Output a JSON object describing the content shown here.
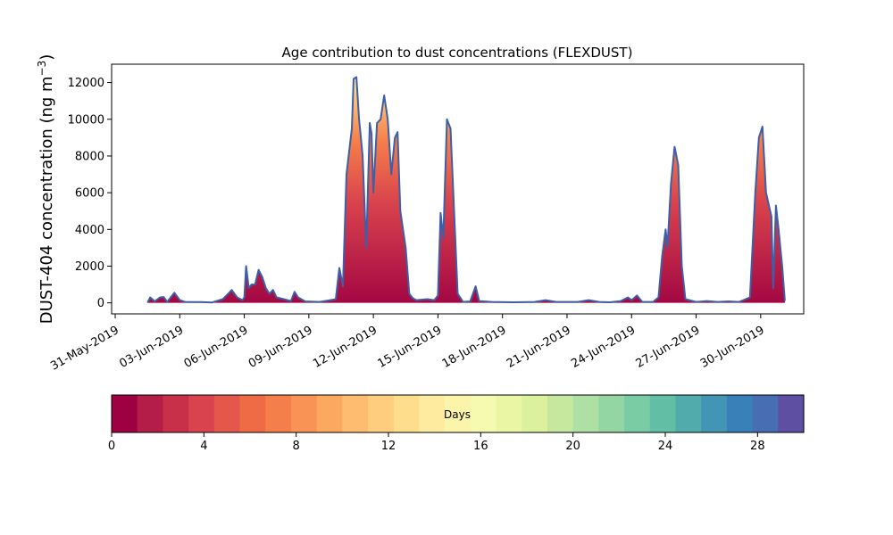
{
  "chart_data": {
    "type": "area",
    "title": "Age contribution to dust concentrations (FLEXDUST)",
    "ylabel": "DUST-404 concentration (ng m",
    "ylabel_unit_sup": "−3",
    "ylabel_close": ")",
    "ylim": [
      -600,
      13000
    ],
    "yticks": [
      0,
      2000,
      4000,
      6000,
      8000,
      10000,
      12000
    ],
    "xlim": [
      "2019-05-30T20:00",
      "2019-07-02T00:00"
    ],
    "xticks": [
      "2019-05-31",
      "2019-06-03",
      "2019-06-06",
      "2019-06-09",
      "2019-06-12",
      "2019-06-15",
      "2019-06-18",
      "2019-06-21",
      "2019-06-24",
      "2019-06-27",
      "2019-06-30"
    ],
    "xtick_labels": [
      "31-May-2019",
      "03-Jun-2019",
      "06-Jun-2019",
      "09-Jun-2019",
      "12-Jun-2019",
      "15-Jun-2019",
      "18-Jun-2019",
      "21-Jun-2019",
      "24-Jun-2019",
      "27-Jun-2019",
      "30-Jun-2019"
    ],
    "grid": false,
    "series_description": "Cumulative dust concentration stacked by particle age (0-30 days); outer envelope shown as blue line",
    "total_concentration": [
      [
        "2019-06-01T12:00",
        0
      ],
      [
        "2019-06-01T15:00",
        300
      ],
      [
        "2019-06-01T20:00",
        80
      ],
      [
        "2019-06-02T02:00",
        300
      ],
      [
        "2019-06-02T06:00",
        320
      ],
      [
        "2019-06-02T10:00",
        50
      ],
      [
        "2019-06-02T18:00",
        550
      ],
      [
        "2019-06-03T00:00",
        150
      ],
      [
        "2019-06-03T06:00",
        50
      ],
      [
        "2019-06-04T00:00",
        40
      ],
      [
        "2019-06-04T12:00",
        20
      ],
      [
        "2019-06-05T00:00",
        200
      ],
      [
        "2019-06-05T06:00",
        500
      ],
      [
        "2019-06-05T10:00",
        700
      ],
      [
        "2019-06-05T16:00",
        300
      ],
      [
        "2019-06-05T22:00",
        150
      ],
      [
        "2019-06-06T00:00",
        300
      ],
      [
        "2019-06-06T02:00",
        2000
      ],
      [
        "2019-06-06T05:00",
        800
      ],
      [
        "2019-06-06T08:00",
        1000
      ],
      [
        "2019-06-06T12:00",
        1000
      ],
      [
        "2019-06-06T16:00",
        1800
      ],
      [
        "2019-06-06T20:00",
        1400
      ],
      [
        "2019-06-07T00:00",
        800
      ],
      [
        "2019-06-07T04:00",
        500
      ],
      [
        "2019-06-07T08:00",
        700
      ],
      [
        "2019-06-07T12:00",
        300
      ],
      [
        "2019-06-07T20:00",
        200
      ],
      [
        "2019-06-08T04:00",
        100
      ],
      [
        "2019-06-08T08:00",
        600
      ],
      [
        "2019-06-08T12:00",
        300
      ],
      [
        "2019-06-08T20:00",
        80
      ],
      [
        "2019-06-09T12:00",
        50
      ],
      [
        "2019-06-10T00:00",
        150
      ],
      [
        "2019-06-10T06:00",
        200
      ],
      [
        "2019-06-10T10:00",
        1900
      ],
      [
        "2019-06-10T14:00",
        900
      ],
      [
        "2019-06-10T18:00",
        7000
      ],
      [
        "2019-06-11T00:00",
        9500
      ],
      [
        "2019-06-11T02:00",
        12200
      ],
      [
        "2019-06-11T05:00",
        12300
      ],
      [
        "2019-06-11T08:00",
        10000
      ],
      [
        "2019-06-11T12:00",
        8000
      ],
      [
        "2019-06-11T16:00",
        3000
      ],
      [
        "2019-06-11T20:00",
        9800
      ],
      [
        "2019-06-11T22:00",
        9200
      ],
      [
        "2019-06-12T00:00",
        6000
      ],
      [
        "2019-06-12T04:00",
        9800
      ],
      [
        "2019-06-12T08:00",
        10000
      ],
      [
        "2019-06-12T12:00",
        11300
      ],
      [
        "2019-06-12T16:00",
        10000
      ],
      [
        "2019-06-12T20:00",
        7000
      ],
      [
        "2019-06-13T00:00",
        9000
      ],
      [
        "2019-06-13T03:00",
        9300
      ],
      [
        "2019-06-13T06:00",
        5000
      ],
      [
        "2019-06-13T12:00",
        3000
      ],
      [
        "2019-06-13T16:00",
        500
      ],
      [
        "2019-06-13T20:00",
        250
      ],
      [
        "2019-06-14T00:00",
        150
      ],
      [
        "2019-06-14T12:00",
        200
      ],
      [
        "2019-06-14T20:00",
        150
      ],
      [
        "2019-06-15T00:00",
        400
      ],
      [
        "2019-06-15T03:00",
        4900
      ],
      [
        "2019-06-15T06:00",
        3500
      ],
      [
        "2019-06-15T10:00",
        10000
      ],
      [
        "2019-06-15T14:00",
        9500
      ],
      [
        "2019-06-15T18:00",
        5000
      ],
      [
        "2019-06-15T22:00",
        500
      ],
      [
        "2019-06-16T04:00",
        50
      ],
      [
        "2019-06-16T12:00",
        80
      ],
      [
        "2019-06-16T18:00",
        900
      ],
      [
        "2019-06-16T22:00",
        100
      ],
      [
        "2019-06-17T12:00",
        50
      ],
      [
        "2019-06-18T12:00",
        30
      ],
      [
        "2019-06-19T12:00",
        50
      ],
      [
        "2019-06-20T00:00",
        150
      ],
      [
        "2019-06-20T12:00",
        50
      ],
      [
        "2019-06-21T12:00",
        50
      ],
      [
        "2019-06-22T00:00",
        150
      ],
      [
        "2019-06-22T12:00",
        50
      ],
      [
        "2019-06-23T00:00",
        30
      ],
      [
        "2019-06-23T12:00",
        100
      ],
      [
        "2019-06-23T20:00",
        300
      ],
      [
        "2019-06-24T00:00",
        150
      ],
      [
        "2019-06-24T06:00",
        400
      ],
      [
        "2019-06-24T12:00",
        50
      ],
      [
        "2019-06-25T00:00",
        50
      ],
      [
        "2019-06-25T06:00",
        300
      ],
      [
        "2019-06-25T10:00",
        2500
      ],
      [
        "2019-06-25T14:00",
        4000
      ],
      [
        "2019-06-25T16:00",
        3000
      ],
      [
        "2019-06-25T20:00",
        6500
      ],
      [
        "2019-06-26T00:00",
        8500
      ],
      [
        "2019-06-26T04:00",
        7500
      ],
      [
        "2019-06-26T08:00",
        2000
      ],
      [
        "2019-06-26T12:00",
        200
      ],
      [
        "2019-06-27T00:00",
        50
      ],
      [
        "2019-06-27T12:00",
        100
      ],
      [
        "2019-06-28T00:00",
        50
      ],
      [
        "2019-06-28T12:00",
        80
      ],
      [
        "2019-06-29T00:00",
        50
      ],
      [
        "2019-06-29T12:00",
        300
      ],
      [
        "2019-06-29T18:00",
        6000
      ],
      [
        "2019-06-29T22:00",
        9000
      ],
      [
        "2019-06-30T02:00",
        9600
      ],
      [
        "2019-06-30T06:00",
        6000
      ],
      [
        "2019-06-30T12:00",
        4700
      ],
      [
        "2019-06-30T14:00",
        800
      ],
      [
        "2019-06-30T17:00",
        5300
      ],
      [
        "2019-06-30T20:00",
        4000
      ],
      [
        "2019-07-01T00:00",
        2000
      ],
      [
        "2019-07-01T03:00",
        100
      ]
    ]
  },
  "colorbar": {
    "label": "Days",
    "min": 0,
    "max": 30,
    "ticks": [
      0,
      4,
      8,
      12,
      16,
      20,
      24,
      28
    ],
    "colors": [
      "#9e0142",
      "#b41d47",
      "#c8304a",
      "#d8434d",
      "#e4574a",
      "#ee6b45",
      "#f57f4a",
      "#f99355",
      "#fca861",
      "#fdbc6f",
      "#fecd7d",
      "#fedd8d",
      "#feeb9f",
      "#fbf4ab",
      "#f4fab0",
      "#ebf6a5",
      "#dcf19d",
      "#c6e89e",
      "#ade0a2",
      "#93d6a4",
      "#7acca5",
      "#63bea6",
      "#51aaac",
      "#4295b4",
      "#3980b9",
      "#476db2",
      "#5e4fa2"
    ]
  }
}
